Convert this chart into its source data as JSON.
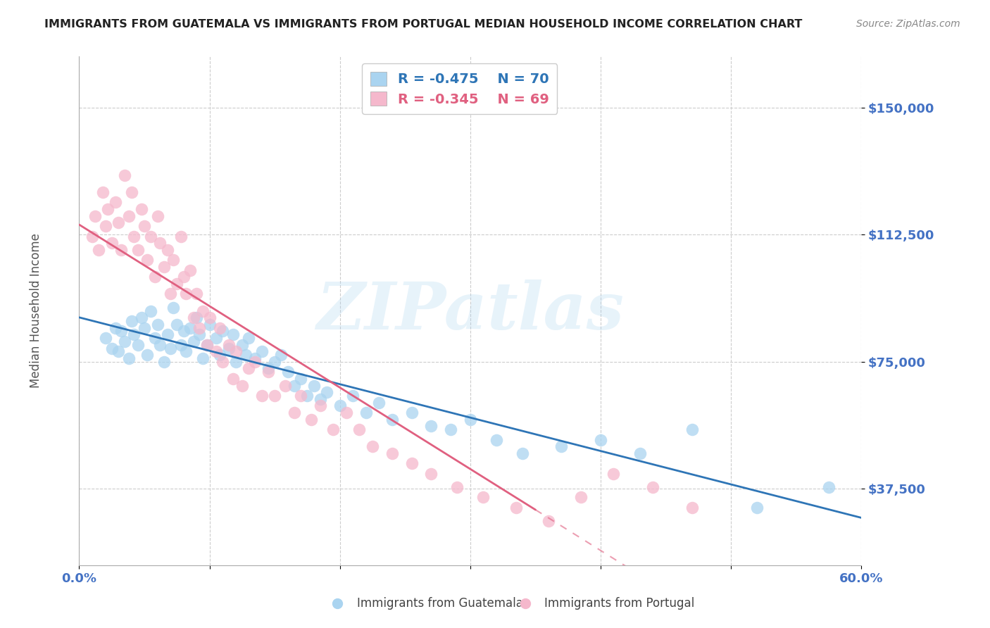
{
  "title": "IMMIGRANTS FROM GUATEMALA VS IMMIGRANTS FROM PORTUGAL MEDIAN HOUSEHOLD INCOME CORRELATION CHART",
  "source": "Source: ZipAtlas.com",
  "ylabel": "Median Household Income",
  "yticks": [
    37500,
    75000,
    112500,
    150000
  ],
  "ytick_labels": [
    "$37,500",
    "$75,000",
    "$112,500",
    "$150,000"
  ],
  "ylim": [
    15000,
    165000
  ],
  "xlim": [
    0.0,
    0.6
  ],
  "watermark_text": "ZIPatlas",
  "legend1_R": "R = -0.475",
  "legend1_N": "N = 70",
  "legend2_R": "R = -0.345",
  "legend2_N": "N = 69",
  "color_blue": "#aad4f0",
  "color_pink": "#f5b8cc",
  "line_blue": "#2e75b6",
  "line_pink": "#e06080",
  "tick_color": "#4472c4",
  "title_color": "#222222",
  "source_color": "#888888",
  "ylabel_color": "#555555",
  "guatemala_x": [
    0.02,
    0.025,
    0.028,
    0.03,
    0.032,
    0.035,
    0.038,
    0.04,
    0.042,
    0.045,
    0.048,
    0.05,
    0.052,
    0.055,
    0.058,
    0.06,
    0.062,
    0.065,
    0.068,
    0.07,
    0.072,
    0.075,
    0.078,
    0.08,
    0.082,
    0.085,
    0.088,
    0.09,
    0.092,
    0.095,
    0.098,
    0.1,
    0.105,
    0.108,
    0.11,
    0.115,
    0.118,
    0.12,
    0.125,
    0.128,
    0.13,
    0.135,
    0.14,
    0.145,
    0.15,
    0.155,
    0.16,
    0.165,
    0.17,
    0.175,
    0.18,
    0.185,
    0.19,
    0.2,
    0.21,
    0.22,
    0.23,
    0.24,
    0.255,
    0.27,
    0.285,
    0.3,
    0.32,
    0.34,
    0.37,
    0.4,
    0.43,
    0.47,
    0.52,
    0.575
  ],
  "guatemala_y": [
    82000,
    79000,
    85000,
    78000,
    84000,
    81000,
    76000,
    87000,
    83000,
    80000,
    88000,
    85000,
    77000,
    90000,
    82000,
    86000,
    80000,
    75000,
    83000,
    79000,
    91000,
    86000,
    80000,
    84000,
    78000,
    85000,
    81000,
    88000,
    83000,
    76000,
    80000,
    86000,
    82000,
    77000,
    84000,
    79000,
    83000,
    75000,
    80000,
    77000,
    82000,
    76000,
    78000,
    73000,
    75000,
    77000,
    72000,
    68000,
    70000,
    65000,
    68000,
    64000,
    66000,
    62000,
    65000,
    60000,
    63000,
    58000,
    60000,
    56000,
    55000,
    58000,
    52000,
    48000,
    50000,
    52000,
    48000,
    55000,
    32000,
    38000
  ],
  "portugal_x": [
    0.01,
    0.012,
    0.015,
    0.018,
    0.02,
    0.022,
    0.025,
    0.028,
    0.03,
    0.032,
    0.035,
    0.038,
    0.04,
    0.042,
    0.045,
    0.048,
    0.05,
    0.052,
    0.055,
    0.058,
    0.06,
    0.062,
    0.065,
    0.068,
    0.07,
    0.072,
    0.075,
    0.078,
    0.08,
    0.082,
    0.085,
    0.088,
    0.09,
    0.092,
    0.095,
    0.098,
    0.1,
    0.105,
    0.108,
    0.11,
    0.115,
    0.118,
    0.12,
    0.125,
    0.13,
    0.135,
    0.14,
    0.145,
    0.15,
    0.158,
    0.165,
    0.17,
    0.178,
    0.185,
    0.195,
    0.205,
    0.215,
    0.225,
    0.24,
    0.255,
    0.27,
    0.29,
    0.31,
    0.335,
    0.36,
    0.385,
    0.41,
    0.44,
    0.47
  ],
  "portugal_y": [
    112000,
    118000,
    108000,
    125000,
    115000,
    120000,
    110000,
    122000,
    116000,
    108000,
    130000,
    118000,
    125000,
    112000,
    108000,
    120000,
    115000,
    105000,
    112000,
    100000,
    118000,
    110000,
    103000,
    108000,
    95000,
    105000,
    98000,
    112000,
    100000,
    95000,
    102000,
    88000,
    95000,
    85000,
    90000,
    80000,
    88000,
    78000,
    85000,
    75000,
    80000,
    70000,
    78000,
    68000,
    73000,
    75000,
    65000,
    72000,
    65000,
    68000,
    60000,
    65000,
    58000,
    62000,
    55000,
    60000,
    55000,
    50000,
    48000,
    45000,
    42000,
    38000,
    35000,
    32000,
    28000,
    35000,
    42000,
    38000,
    32000
  ]
}
